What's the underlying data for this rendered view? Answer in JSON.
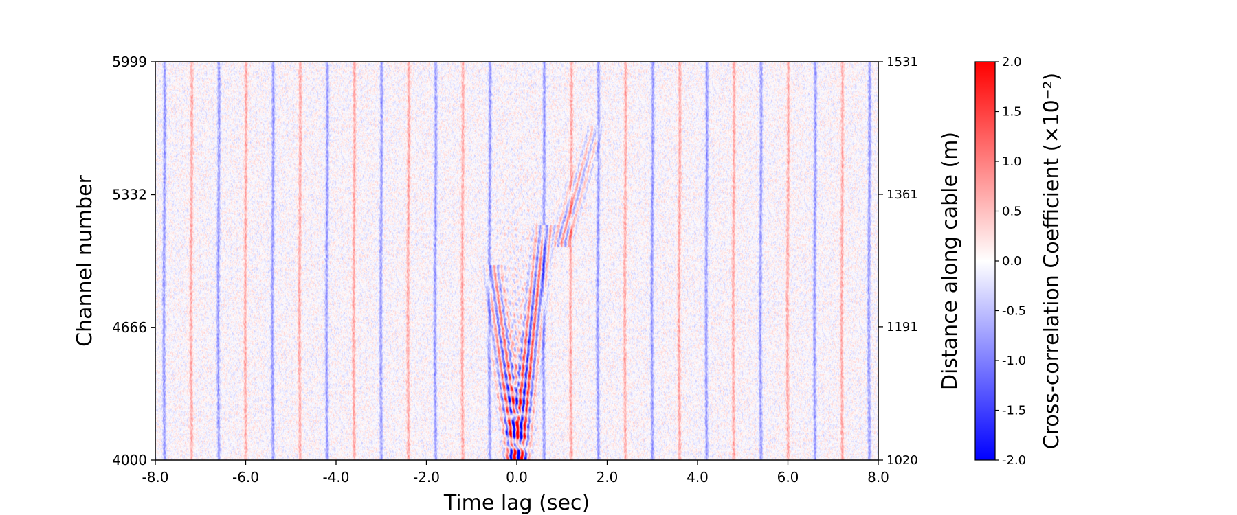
{
  "chart_data": {
    "type": "heatmap",
    "title": "",
    "xlabel": "Time lag (sec)",
    "ylabel": "Channel number",
    "y2label": "Distance along cable (m)",
    "xlim": [
      -8.0,
      8.0
    ],
    "ylim": [
      4000,
      5999
    ],
    "y2lim": [
      1020,
      1531
    ],
    "x_ticks": [
      -8.0,
      -6.0,
      -4.0,
      -2.0,
      0.0,
      2.0,
      4.0,
      6.0,
      8.0
    ],
    "x_tick_labels": [
      "-8.0",
      "-6.0",
      "-4.0",
      "-2.0",
      "0.0",
      "2.0",
      "4.0",
      "6.0",
      "8.0"
    ],
    "y_ticks": [
      4000,
      4666,
      5332,
      5999
    ],
    "y_tick_labels": [
      "4000",
      "4666",
      "5332",
      "5999"
    ],
    "y2_ticks": [
      1020,
      1191,
      1361,
      1531
    ],
    "y2_tick_labels": [
      "1020",
      "1191",
      "1361",
      "1531"
    ],
    "colormap": "bwr",
    "colors": {
      "negative": "#0000ff",
      "zero": "#ffffff",
      "positive": "#ff0000"
    },
    "colorbar": {
      "label": "Cross-correlation Coefficient (×10⁻²)",
      "range": [
        -2.0,
        2.0
      ],
      "ticks": [
        -2.0,
        -1.5,
        -1.0,
        -0.5,
        0.0,
        0.5,
        1.0,
        1.5,
        2.0
      ],
      "tick_labels": [
        "-2.0",
        "-1.5",
        "-1.0",
        "-0.5",
        "0.0",
        "0.5",
        "1.0",
        "1.5",
        "2.0"
      ]
    },
    "periodic_stripes": {
      "period_sec": 1.2,
      "blue_lags_sec": [
        -7.8,
        -6.6,
        -5.4,
        -4.2,
        -3.0,
        -1.8,
        -0.6,
        0.6,
        1.8,
        3.0,
        4.2,
        5.4,
        6.6,
        7.8
      ],
      "red_lags_sec": [
        -7.2,
        -6.0,
        -4.8,
        -3.6,
        -2.4,
        -1.2,
        1.2,
        2.4,
        3.6,
        4.8,
        6.0,
        7.2
      ],
      "amplitude": 0.8
    },
    "coherent_arrivals": [
      {
        "name": "causal-branch",
        "from": {
          "lag": 0.0,
          "channel": 4000
        },
        "to": {
          "lag": 0.6,
          "channel": 5150
        },
        "amplitude": 2.0
      },
      {
        "name": "acausal-branch",
        "from": {
          "lag": 0.0,
          "channel": 4000
        },
        "to": {
          "lag": -0.5,
          "channel": 4950
        },
        "amplitude": 1.8
      },
      {
        "name": "late-branch",
        "from": {
          "lag": 1.0,
          "channel": 5100
        },
        "to": {
          "lag": 1.7,
          "channel": 5650
        },
        "amplitude": 0.9
      }
    ]
  }
}
